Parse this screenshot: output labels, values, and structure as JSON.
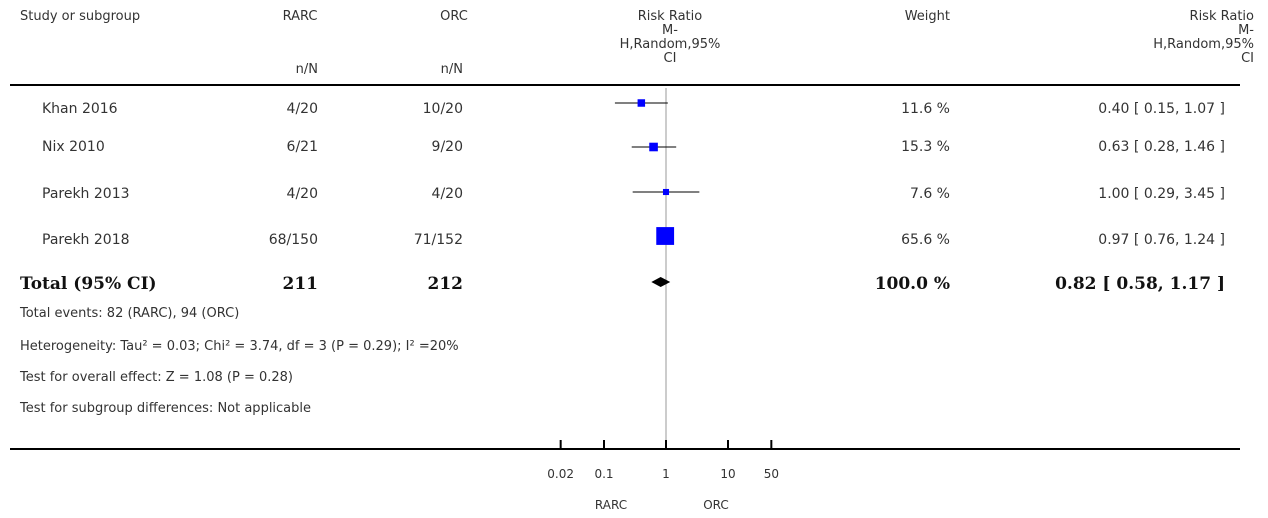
{
  "header": {
    "study": "Study or subgroup",
    "group1": "RARC",
    "group2": "ORC",
    "group1_sub": "n/N",
    "group2_sub": "n/N",
    "rr_plot": [
      "Risk Ratio",
      "M-",
      "H,Random,95%",
      "CI"
    ],
    "weight": "Weight",
    "rr_text": [
      "Risk Ratio",
      "M-",
      "H,Random,95%",
      "CI"
    ]
  },
  "rows": [
    {
      "study": "Khan 2016",
      "g1": "4/20",
      "g2": "10/20",
      "weight": "11.6 %",
      "ci": "0.40 [ 0.15, 1.07 ]"
    },
    {
      "study": "Nix 2010",
      "g1": "6/21",
      "g2": "9/20",
      "weight": "15.3 %",
      "ci": "0.63 [ 0.28, 1.46 ]"
    },
    {
      "study": "Parekh 2013",
      "g1": "4/20",
      "g2": "4/20",
      "weight": "7.6 %",
      "ci": "1.00 [ 0.29, 3.45 ]"
    },
    {
      "study": "Parekh 2018",
      "g1": "68/150",
      "g2": "71/152",
      "weight": "65.6 %",
      "ci": "0.97 [ 0.76, 1.24 ]"
    }
  ],
  "total": {
    "label": "Total (95% CI)",
    "g1": "211",
    "g2": "212",
    "weight": "100.0 %",
    "ci": "0.82 [ 0.58, 1.17 ]"
  },
  "footer": {
    "events": "Total events: 82 (RARC), 94 (ORC)",
    "heterogeneity": "Heterogeneity: Tau² = 0.03; Chi² = 3.74, df = 3 (P = 0.29); I² =20%",
    "overall": "Test for overall effect: Z = 1.08 (P = 0.28)",
    "subgroup": "Test for subgroup differences: Not applicable"
  },
  "axis": {
    "ticks": [
      "0.02",
      "0.1",
      "1",
      "10",
      "50"
    ],
    "favours_left": "RARC",
    "favours_right": "ORC"
  },
  "colors": {
    "marker": "#0000ff",
    "line": "#000000",
    "ref_line": "#999999"
  },
  "chart_data": {
    "type": "forest",
    "scale": "log",
    "xlim": [
      0.02,
      50
    ],
    "tick_values": [
      0.02,
      0.1,
      1,
      10,
      50
    ],
    "studies": [
      {
        "name": "Khan 2016",
        "rr": 0.4,
        "lo": 0.15,
        "hi": 1.07,
        "weight": 11.6
      },
      {
        "name": "Nix 2010",
        "rr": 0.63,
        "lo": 0.28,
        "hi": 1.46,
        "weight": 15.3
      },
      {
        "name": "Parekh 2013",
        "rr": 1.0,
        "lo": 0.29,
        "hi": 3.45,
        "weight": 7.6
      },
      {
        "name": "Parekh 2018",
        "rr": 0.97,
        "lo": 0.76,
        "hi": 1.24,
        "weight": 65.6
      }
    ],
    "pooled": {
      "rr": 0.82,
      "lo": 0.58,
      "hi": 1.17
    }
  }
}
